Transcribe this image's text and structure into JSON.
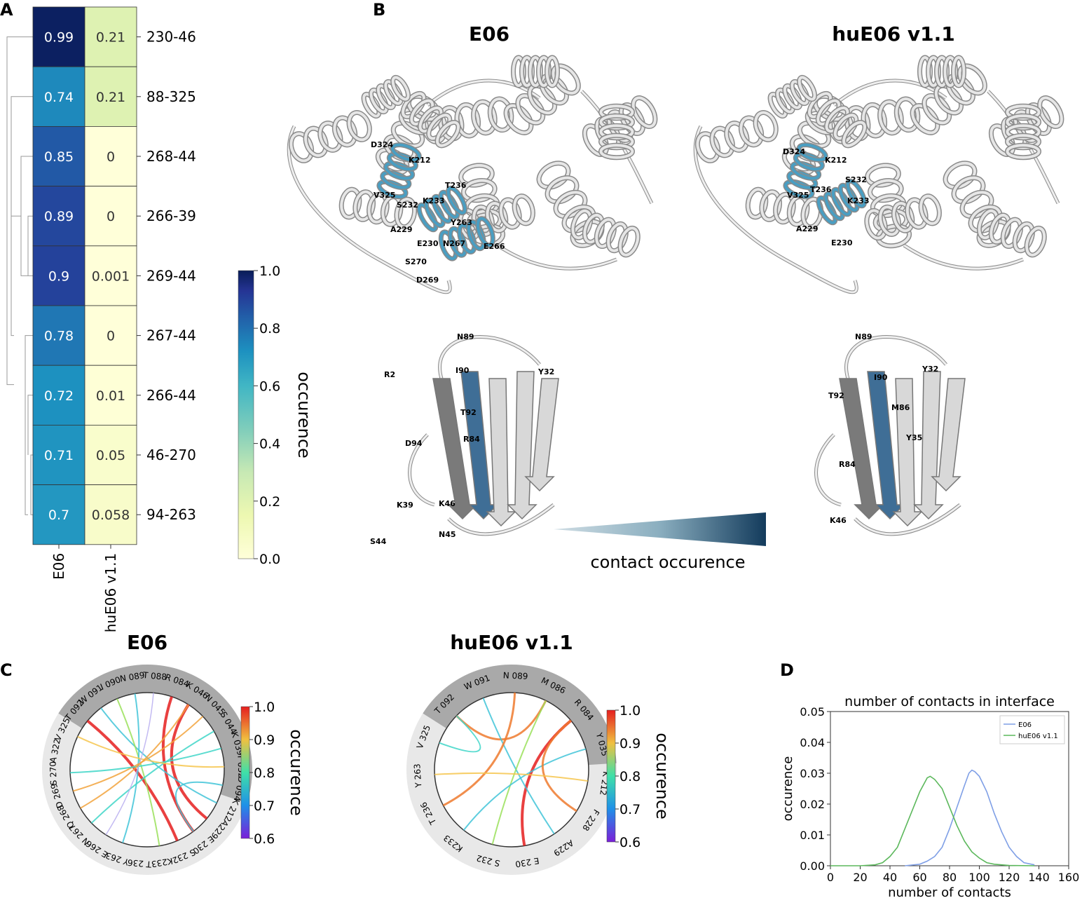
{
  "panels": {
    "a": "A",
    "b": "B",
    "c": "C",
    "d": "D"
  },
  "colorbar_a": {
    "label": "occurence",
    "ticks": [
      "1.0",
      "0.8",
      "0.6",
      "0.4",
      "0.2",
      "0.0"
    ]
  },
  "panel_b": {
    "left_title": "E06",
    "right_title": "huE06 v1.1",
    "gradient_label": "contact occurence",
    "left_top_labels": [
      "D324",
      "K212",
      "V325",
      "T236",
      "S232",
      "K233",
      "A229",
      "Y263",
      "E230",
      "N267",
      "E266",
      "S270",
      "D269"
    ],
    "right_top_labels": [
      "D324",
      "K212",
      "V325",
      "S232",
      "T236",
      "K233",
      "A229",
      "E230"
    ],
    "left_bottom_labels": [
      "N89",
      "R2",
      "I90",
      "Y32",
      "T92",
      "D94",
      "R84",
      "K39",
      "K46",
      "S44",
      "N45"
    ],
    "right_bottom_labels": [
      "N89",
      "Y32",
      "I90",
      "T92",
      "M86",
      "Y35",
      "R84",
      "K46"
    ]
  },
  "chord_left": {
    "title": "E06",
    "labels": [
      "T 092",
      "W 091",
      "I 090",
      "N 089",
      "T 088",
      "R 084",
      "K 046",
      "N 045",
      "S 044",
      "K 039",
      "Y 032",
      "D 094",
      "K 212",
      "A229",
      "E 230",
      "S 232",
      "K233",
      "T 236",
      "Y 263",
      "E 266",
      "N 267",
      "Q 268",
      "D 269",
      "S 270",
      "A 322",
      "V 325"
    ]
  },
  "chord_right": {
    "title": "huE06 v1.1",
    "labels": [
      "T 092",
      "W 091",
      "N 089",
      "M 086",
      "R 084",
      "Y 035",
      "K 212",
      "F 228",
      "A229",
      "E 230",
      "S 232",
      "K233",
      "T 236",
      "Y 263",
      "V 325"
    ]
  },
  "colorbar_c": {
    "label": "occurence",
    "ticks": [
      "1.0",
      "0.9",
      "0.8",
      "0.7",
      "0.6"
    ]
  },
  "chart_data": [
    {
      "type": "heatmap",
      "columns": [
        "E06",
        "huE06 v1.1"
      ],
      "rows": [
        "230-46",
        "88-325",
        "268-44",
        "266-39",
        "269-44",
        "267-44",
        "266-44",
        "46-270",
        "94-263"
      ],
      "values": [
        [
          0.99,
          0.21
        ],
        [
          0.74,
          0.21
        ],
        [
          0.85,
          0
        ],
        [
          0.89,
          0
        ],
        [
          0.9,
          0.001
        ],
        [
          0.78,
          0
        ],
        [
          0.72,
          0.01
        ],
        [
          0.71,
          0.05
        ],
        [
          0.7,
          0.058
        ]
      ],
      "value_labels": [
        [
          "0.99",
          "0.21"
        ],
        [
          "0.74",
          "0.21"
        ],
        [
          "0.85",
          "0"
        ],
        [
          "0.89",
          "0"
        ],
        [
          "0.9",
          "0.001"
        ],
        [
          "0.78",
          "0"
        ],
        [
          "0.72",
          "0.01"
        ],
        [
          "0.71",
          "0.05"
        ],
        [
          "0.7",
          "0.058"
        ]
      ],
      "colorbar_range": [
        0,
        1
      ],
      "colormap": "YlGnBu"
    },
    {
      "type": "line",
      "title": "number of contacts in interface",
      "xlabel": "number of contacts",
      "ylabel": "occurence",
      "xlim": [
        0,
        160
      ],
      "ylim": [
        0,
        0.05
      ],
      "xticks": [
        "0",
        "20",
        "40",
        "60",
        "80",
        "100",
        "120",
        "140",
        "160"
      ],
      "yticks": [
        "0.00",
        "0.01",
        "0.02",
        "0.03",
        "0.04",
        "0.05"
      ],
      "legend_position": "top-right",
      "series": [
        {
          "name": "E06",
          "color": "#7f9fe6",
          "x": [
            50,
            60,
            65,
            70,
            75,
            80,
            85,
            90,
            93,
            95,
            97,
            100,
            105,
            110,
            115,
            120,
            125,
            130,
            137
          ],
          "y": [
            0,
            0.0005,
            0.0015,
            0.003,
            0.006,
            0.012,
            0.019,
            0.026,
            0.03,
            0.031,
            0.0305,
            0.029,
            0.024,
            0.017,
            0.011,
            0.006,
            0.003,
            0.001,
            0.0003
          ]
        },
        {
          "name": "huE06 v1.1",
          "color": "#5cb85c",
          "x": [
            0,
            20,
            30,
            35,
            40,
            45,
            50,
            55,
            60,
            65,
            67,
            70,
            75,
            80,
            85,
            90,
            95,
            100,
            105,
            110,
            120,
            137
          ],
          "y": [
            0,
            0,
            0.0003,
            0.001,
            0.003,
            0.006,
            0.012,
            0.018,
            0.024,
            0.0285,
            0.029,
            0.028,
            0.025,
            0.019,
            0.013,
            0.008,
            0.0045,
            0.0025,
            0.001,
            0.0005,
            0.0001,
            0
          ]
        }
      ]
    }
  ]
}
